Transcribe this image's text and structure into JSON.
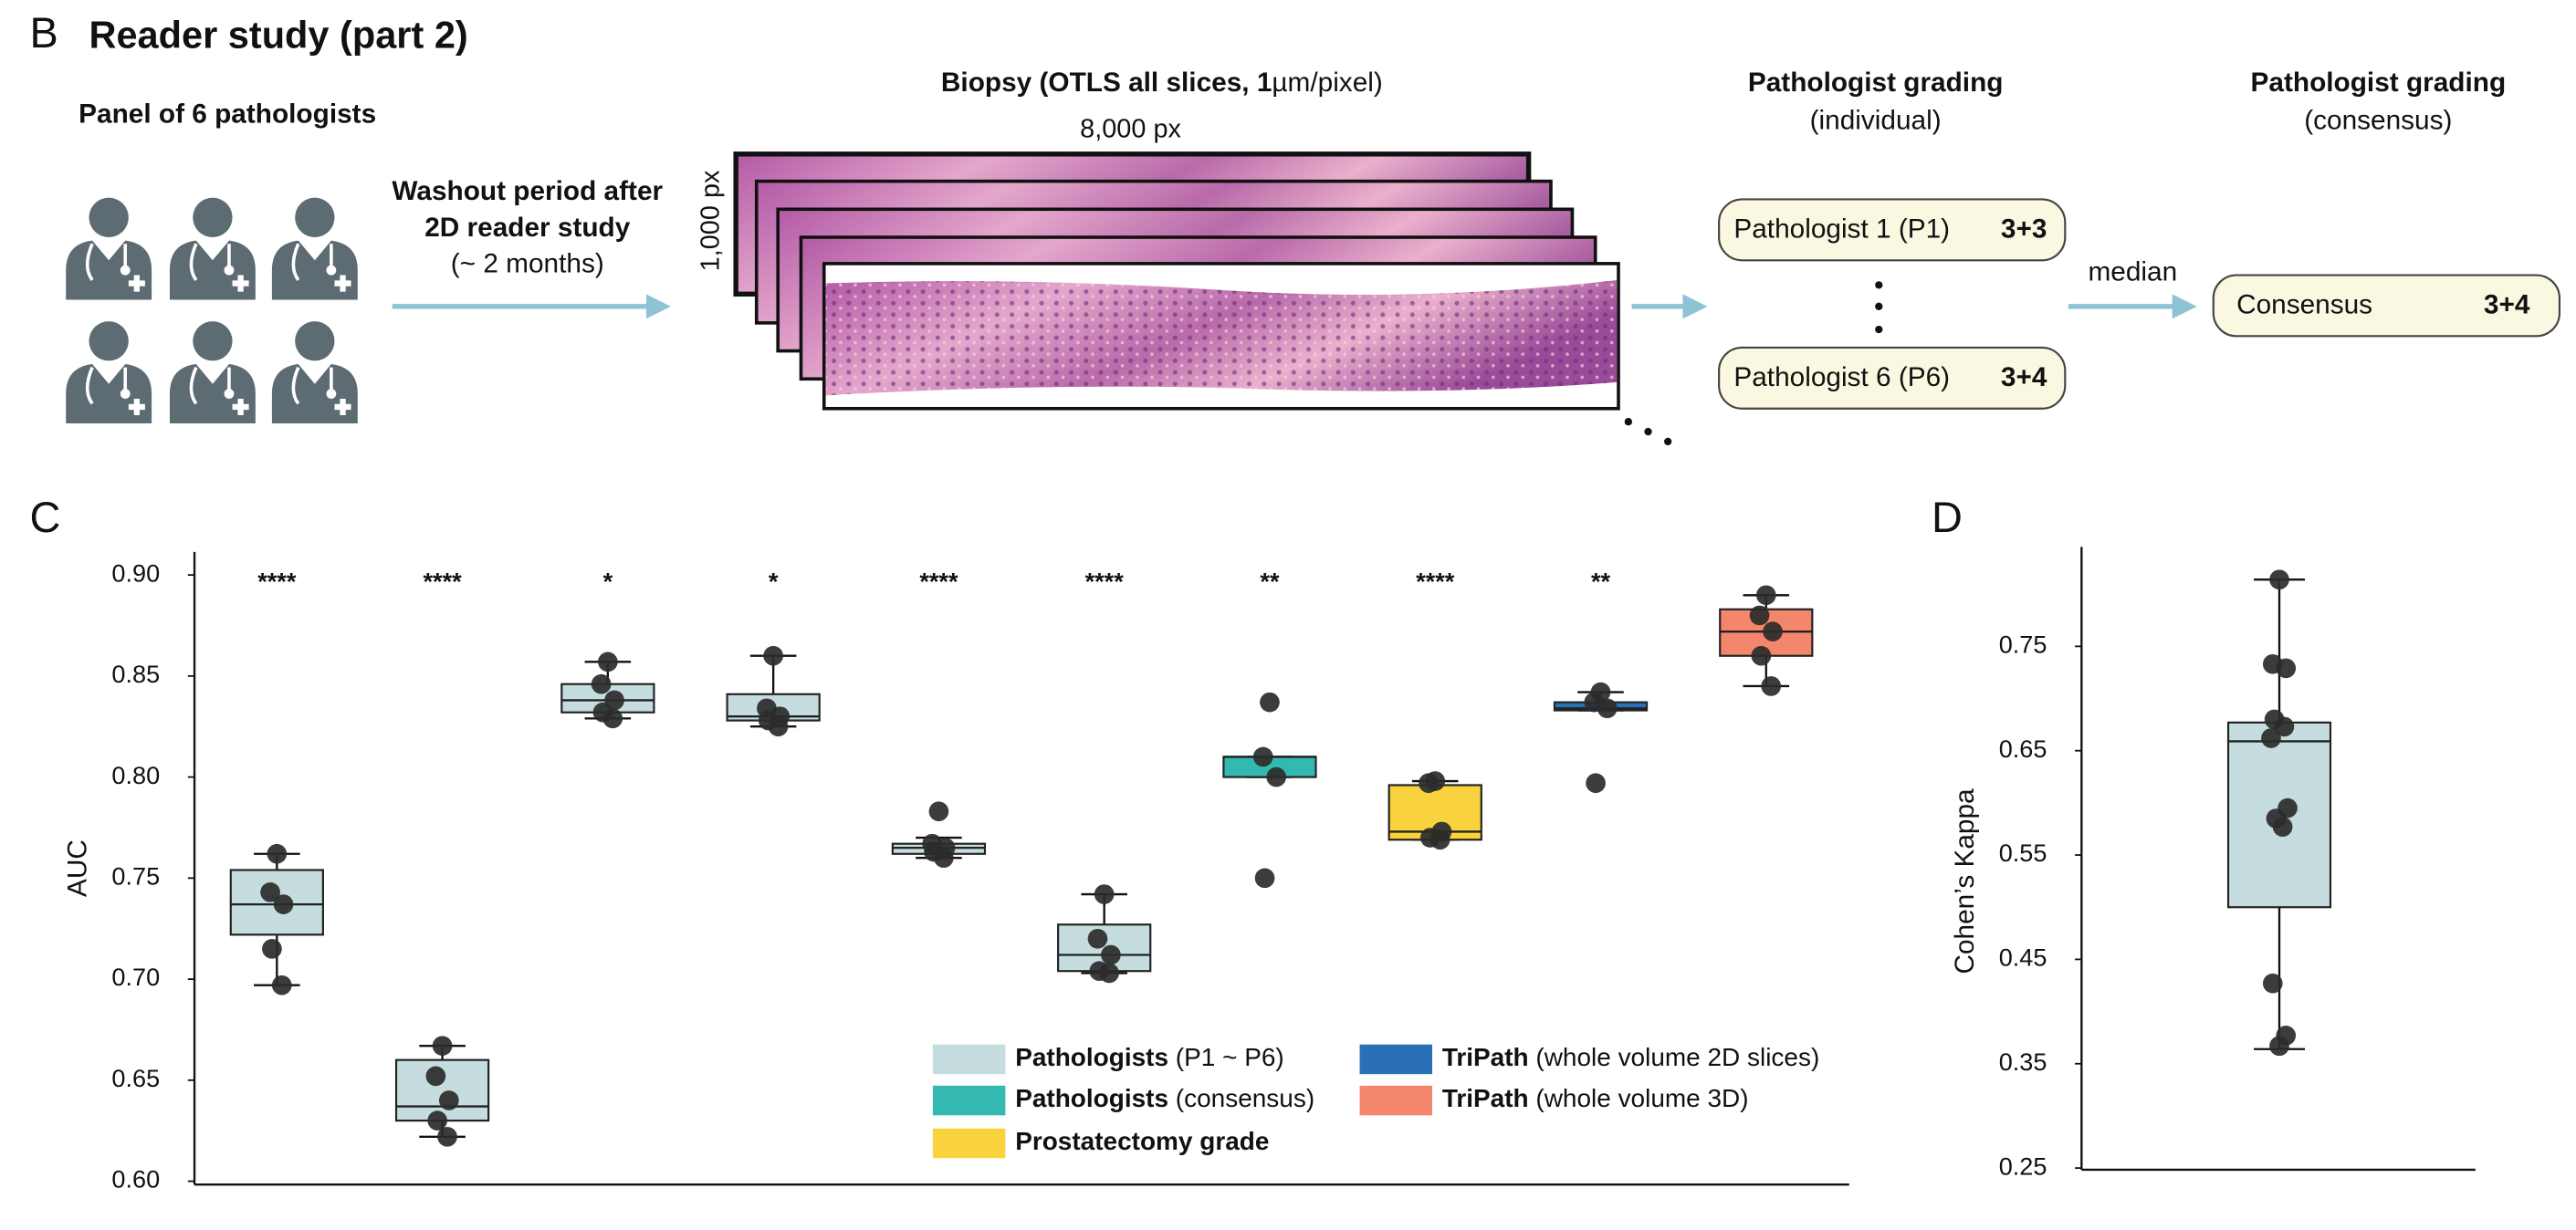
{
  "panel_b": {
    "letter": "B",
    "title": "Reader study (part 2)",
    "panel_label": "Panel of 6 pathologists",
    "washout": [
      "Washout period after",
      "2D reader study",
      "(~ 2 months)"
    ],
    "biopsy_title_bold": "Biopsy (OTLS all slices, 1",
    "biopsy_title_rest": "µm/pixel)",
    "width_label": "8,000 px",
    "height_label": "1,000 px",
    "individual_title": "Pathologist grading",
    "individual_subtitle": "(individual)",
    "consensus_title": "Pathologist grading",
    "consensus_subtitle": "(consensus)",
    "grades": [
      {
        "name": "Pathologist 1 (P1)",
        "grade": "3+3"
      },
      {
        "name": "Pathologist 6 (P6)",
        "grade": "3+4"
      }
    ],
    "median_label": "median",
    "consensus": {
      "name": "Consensus",
      "grade": "3+4"
    }
  },
  "chart_data": [
    {
      "type": "box",
      "letter": "C",
      "ylabel": "AUC",
      "ylim": [
        0.6,
        0.9
      ],
      "yticks": [
        {
          "value": 0.6,
          "label": "0.60"
        },
        0.65,
        {
          "value": 0.7,
          "label": "0.70"
        },
        0.75,
        {
          "value": 0.8,
          "label": "0.80"
        },
        0.85,
        {
          "value": 0.9,
          "label": "0.90"
        }
      ],
      "series": [
        {
          "name": "Pathologists",
          "detail": "(P1 ~ P6)",
          "color": "#c6dde0"
        },
        {
          "name": "Pathologists",
          "detail": "(consensus)",
          "color": "#33b9b1"
        },
        {
          "name": "Prostatectomy grade",
          "color": "#f9d33d"
        },
        {
          "name": "TriPath",
          "detail": "(whole volume 2D slices)",
          "color": "#2a70b6"
        },
        {
          "name": "TriPath",
          "detail": "(whole volume 3D)",
          "color": "#f4876b"
        }
      ],
      "boxes": [
        {
          "series": 0,
          "low": 0.697,
          "q1": 0.722,
          "median": 0.737,
          "q3": 0.754,
          "high": 0.762,
          "points": [
            0.762,
            0.743,
            0.737,
            0.715,
            0.697
          ],
          "significance": "****"
        },
        {
          "series": 0,
          "low": 0.622,
          "q1": 0.63,
          "median": 0.637,
          "q3": 0.66,
          "high": 0.667,
          "points": [
            0.667,
            0.652,
            0.64,
            0.63,
            0.622
          ],
          "significance": "****"
        },
        {
          "series": 0,
          "low": 0.829,
          "q1": 0.832,
          "median": 0.838,
          "q3": 0.846,
          "high": 0.857,
          "points": [
            0.857,
            0.846,
            0.838,
            0.832,
            0.829
          ],
          "significance": "*"
        },
        {
          "series": 0,
          "low": 0.825,
          "q1": 0.828,
          "median": 0.83,
          "q3": 0.841,
          "high": 0.86,
          "points": [
            0.86,
            0.834,
            0.83,
            0.828,
            0.825
          ],
          "significance": "*"
        },
        {
          "series": 0,
          "low": 0.76,
          "q1": 0.762,
          "median": 0.765,
          "q3": 0.767,
          "high": 0.77,
          "points": [
            0.783,
            0.767,
            0.765,
            0.763,
            0.76
          ],
          "significance": "****"
        },
        {
          "series": 0,
          "low": 0.703,
          "q1": 0.704,
          "median": 0.712,
          "q3": 0.727,
          "high": 0.742,
          "points": [
            0.742,
            0.72,
            0.712,
            0.704,
            0.703
          ],
          "significance": "****"
        },
        {
          "series": 1,
          "low": 0.8,
          "q1": 0.8,
          "median": 0.81,
          "q3": 0.81,
          "high": 0.81,
          "points": [
            0.837,
            0.81,
            0.8,
            0.75
          ],
          "significance": "**"
        },
        {
          "series": 2,
          "low": 0.769,
          "q1": 0.769,
          "median": 0.773,
          "q3": 0.796,
          "high": 0.798,
          "points": [
            0.798,
            0.797,
            0.773,
            0.77,
            0.769
          ],
          "significance": "****"
        },
        {
          "series": 3,
          "low": 0.833,
          "q1": 0.833,
          "median": 0.834,
          "q3": 0.837,
          "high": 0.842,
          "points": [
            0.842,
            0.837,
            0.834,
            0.797
          ],
          "significance": "**"
        },
        {
          "series": 4,
          "low": 0.845,
          "q1": 0.86,
          "median": 0.872,
          "q3": 0.883,
          "high": 0.89,
          "points": [
            0.89,
            0.88,
            0.872,
            0.86,
            0.845
          ]
        }
      ]
    },
    {
      "type": "box",
      "letter": "D",
      "ylabel": "Cohen’s Kappa",
      "ylim": [
        0.25,
        0.85
      ],
      "yticks": [
        0.25,
        0.35,
        0.45,
        0.55,
        0.65,
        0.75
      ],
      "color": "#c6dde0",
      "boxes": [
        {
          "low": 0.364,
          "q1": 0.5,
          "median": 0.659,
          "q3": 0.677,
          "high": 0.814,
          "points": [
            0.814,
            0.733,
            0.729,
            0.68,
            0.673,
            0.662,
            0.595,
            0.585,
            0.577,
            0.427,
            0.377,
            0.367
          ]
        }
      ]
    }
  ]
}
